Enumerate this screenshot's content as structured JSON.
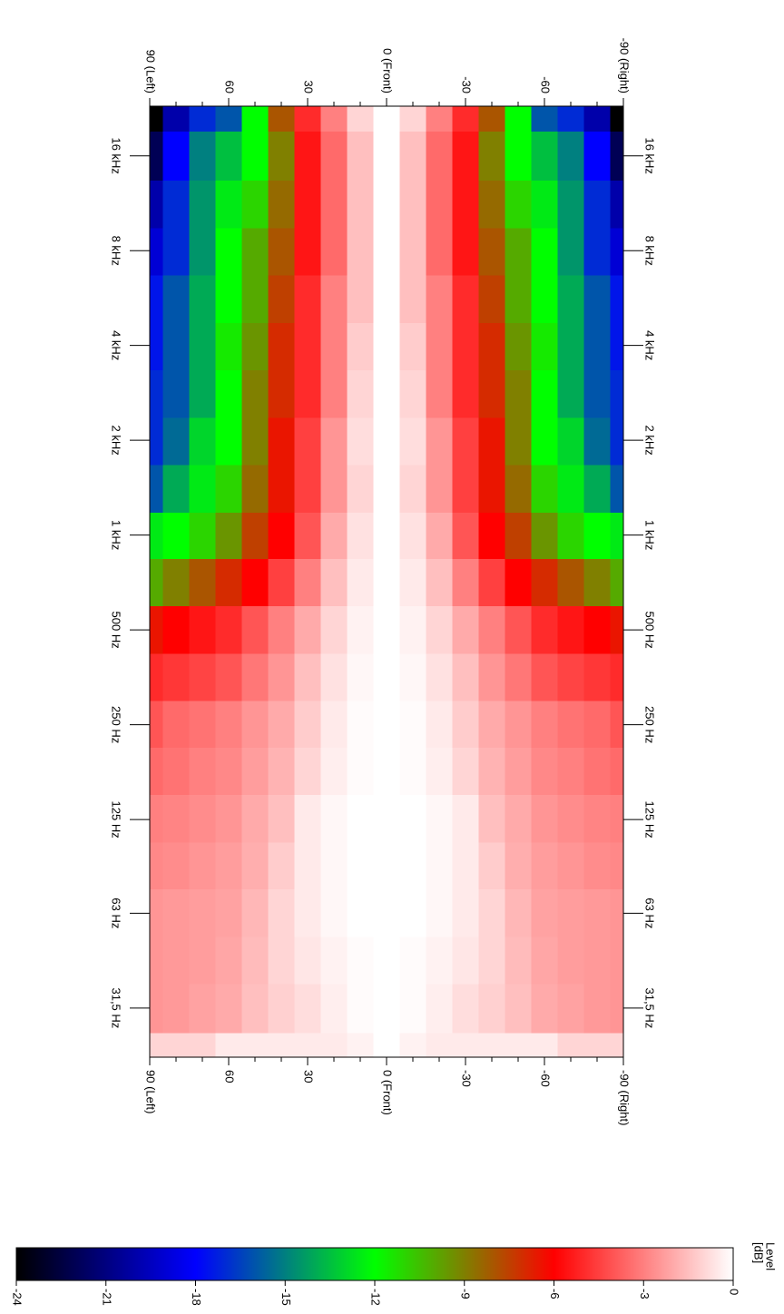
{
  "chart_data": {
    "type": "heatmap",
    "x": [
      90,
      80,
      70,
      60,
      50,
      40,
      30,
      20,
      10,
      0,
      -10,
      -20,
      -30,
      -40,
      -50,
      -60,
      -70,
      -80,
      -90
    ],
    "y": [
      22,
      31.5,
      45,
      63,
      90,
      125,
      180,
      250,
      355,
      500,
      710,
      1000,
      1400,
      2000,
      2800,
      4000,
      5600,
      8000,
      11200,
      16000,
      23000
    ],
    "z": [
      [
        -1,
        -1,
        -1,
        -0.5,
        -0.5,
        -0.5,
        -0.5,
        -0.5,
        -0.3,
        0,
        -0.3,
        -0.5,
        -0.5,
        -0.5,
        -0.5,
        -0.5,
        -1,
        -1,
        -1
      ],
      [
        -2.5,
        -2.4,
        -2.2,
        -2,
        -1.5,
        -1.1,
        -0.8,
        -0.4,
        -0.1,
        0,
        -0.1,
        -0.4,
        -0.8,
        -1.1,
        -1.5,
        -2,
        -2.2,
        -2.4,
        -2.5
      ],
      [
        -2.5,
        -2.4,
        -2.3,
        -2.1,
        -1.6,
        -1,
        -0.6,
        -0.3,
        -0.1,
        0,
        -0.1,
        -0.3,
        -0.6,
        -1,
        -1.6,
        -2.1,
        -2.3,
        -2.4,
        -2.5
      ],
      [
        -2.5,
        -2.4,
        -2.3,
        -2.2,
        -1.7,
        -1,
        -0.5,
        -0.2,
        0,
        0,
        0,
        -0.2,
        -0.5,
        -1,
        -1.7,
        -2.2,
        -2.3,
        -2.4,
        -2.5
      ],
      [
        -2.8,
        -2.7,
        -2.5,
        -2.3,
        -1.9,
        -1.2,
        -0.5,
        -0.2,
        0,
        0,
        0,
        -0.2,
        -0.5,
        -1.2,
        -1.9,
        -2.3,
        -2.5,
        -2.7,
        -2.8
      ],
      [
        -3,
        -2.9,
        -2.7,
        -2.5,
        -2,
        -1.5,
        -0.5,
        -0.2,
        0,
        0,
        0,
        -0.2,
        -0.5,
        -1.5,
        -2,
        -2.5,
        -2.7,
        -2.9,
        -3
      ],
      [
        -3.5,
        -3.3,
        -3,
        -2.8,
        -2.3,
        -1.8,
        -1,
        -0.4,
        -0.1,
        0,
        -0.1,
        -0.4,
        -1,
        -1.8,
        -2.3,
        -2.8,
        -3,
        -3.3,
        -3.5
      ],
      [
        -4,
        -3.5,
        -3.3,
        -3,
        -2.5,
        -2,
        -1.2,
        -0.5,
        -0.1,
        0,
        -0.1,
        -0.5,
        -1.2,
        -2,
        -2.5,
        -3,
        -3.3,
        -3.5,
        -4
      ],
      [
        -5,
        -4.7,
        -4.4,
        -4,
        -3.2,
        -2.5,
        -1.5,
        -0.7,
        -0.2,
        0,
        -0.2,
        -0.7,
        -1.5,
        -2.5,
        -3.2,
        -4,
        -4.4,
        -4.7,
        -5
      ],
      [
        -6.5,
        -6,
        -5.5,
        -5,
        -4,
        -3,
        -2,
        -1,
        -0.3,
        0,
        -0.3,
        -1,
        -2,
        -3,
        -4,
        -5,
        -5.5,
        -6,
        -6.5
      ],
      [
        -10,
        -9,
        -8,
        -7,
        -6,
        -4.5,
        -3,
        -1.5,
        -0.5,
        0,
        -0.5,
        -1.5,
        -3,
        -4.5,
        -6,
        -7,
        -8,
        -9,
        -10
      ],
      [
        -12.5,
        -12,
        -11,
        -9.5,
        -7.5,
        -6,
        -4,
        -2,
        -0.7,
        0,
        -0.7,
        -2,
        -4,
        -6,
        -7.5,
        -9.5,
        -11,
        -12,
        -12.5
      ],
      [
        -16,
        -14,
        -12.5,
        -11,
        -8.5,
        -6.5,
        -4.5,
        -2.5,
        -1,
        0,
        -1,
        -2.5,
        -4.5,
        -6.5,
        -8.5,
        -11,
        -12.5,
        -14,
        -16
      ],
      [
        -17,
        -15.5,
        -13,
        -12,
        -9,
        -6.5,
        -4.5,
        -2.5,
        -0.8,
        0,
        -0.8,
        -2.5,
        -4.5,
        -6.5,
        -9,
        -12,
        -13,
        -15.5,
        -17
      ],
      [
        -17,
        -16,
        -14,
        -12,
        -9,
        -7,
        -5,
        -3,
        -1,
        0,
        -1,
        -3,
        -5,
        -7,
        -9,
        -12,
        -14,
        -16,
        -17
      ],
      [
        -17.5,
        -16,
        -14,
        -11.5,
        -9.5,
        -7,
        -5,
        -3,
        -1.2,
        0,
        -1.2,
        -3,
        -5,
        -7,
        -9.5,
        -11.5,
        -14,
        -16,
        -17.5
      ],
      [
        -17.5,
        -16,
        -14,
        -12,
        -10,
        -7.5,
        -5,
        -3,
        -1.5,
        0,
        -1.5,
        -3,
        -5,
        -7.5,
        -10,
        -12,
        -14,
        -16,
        -17.5
      ],
      [
        -19,
        -17,
        -14.5,
        -12,
        -10,
        -8,
        -5.5,
        -3.5,
        -1.5,
        0,
        -1.5,
        -3.5,
        -5.5,
        -8,
        -10,
        -12,
        -14.5,
        -17,
        -19
      ],
      [
        -20,
        -17,
        -14.5,
        -12.5,
        -11,
        -8.5,
        -5.5,
        -3.5,
        -1.5,
        0,
        -1.5,
        -3.5,
        -5.5,
        -8.5,
        -11,
        -12.5,
        -14.5,
        -17,
        -20
      ],
      [
        -22,
        -18,
        -15,
        -13.5,
        -12,
        -9,
        -5.5,
        -3.5,
        -1.5,
        0,
        -1.5,
        -3.5,
        -5.5,
        -9,
        -12,
        -13.5,
        -15,
        -18,
        -22
      ],
      [
        -24,
        -20,
        -17,
        -16,
        -12,
        -8,
        -5,
        -3,
        -1,
        0,
        -1,
        -3,
        -5,
        -8,
        -12,
        -16,
        -17,
        -20,
        -24
      ]
    ],
    "xlim": [
      90,
      -90
    ],
    "xticks": [
      {
        "value": 90,
        "label": "90 (Left)"
      },
      60,
      30,
      {
        "value": 0,
        "label": "0 (Front)"
      },
      -30,
      -60,
      {
        "value": -90,
        "label": "-90 (Right)"
      }
    ],
    "xminor_ticks": [
      80,
      70,
      50,
      40,
      20,
      10,
      -10,
      -20,
      -40,
      -50,
      -70,
      -80
    ],
    "ylim": [
      22,
      23000
    ],
    "ylog": true,
    "yticks": [
      {
        "value": 16000,
        "label": "16 kHz"
      },
      {
        "value": 8000,
        "label": "8 kHz"
      },
      {
        "value": 4000,
        "label": "4 kHz"
      },
      {
        "value": 2000,
        "label": "2 kHz"
      },
      {
        "value": 1000,
        "label": "1 kHz"
      },
      {
        "value": 500,
        "label": "500 Hz"
      },
      {
        "value": 250,
        "label": "250 Hz"
      },
      {
        "value": 125,
        "label": "125 Hz"
      },
      {
        "value": 63,
        "label": "63 Hz"
      },
      {
        "value": 31.5,
        "label": "31,5 Hz"
      }
    ],
    "colorscale": [
      [
        -24,
        "#000000"
      ],
      [
        -18,
        "#0000ff"
      ],
      [
        -12,
        "#00ff00"
      ],
      [
        -6,
        "#ff0000"
      ],
      [
        0,
        "#ffffff"
      ]
    ],
    "clim": [
      -24,
      0
    ],
    "cticks": [
      0,
      -3,
      -6,
      -9,
      -12,
      -15,
      -18,
      -21,
      -24
    ],
    "colorbar_label": [
      "Level",
      "[dB]"
    ]
  }
}
